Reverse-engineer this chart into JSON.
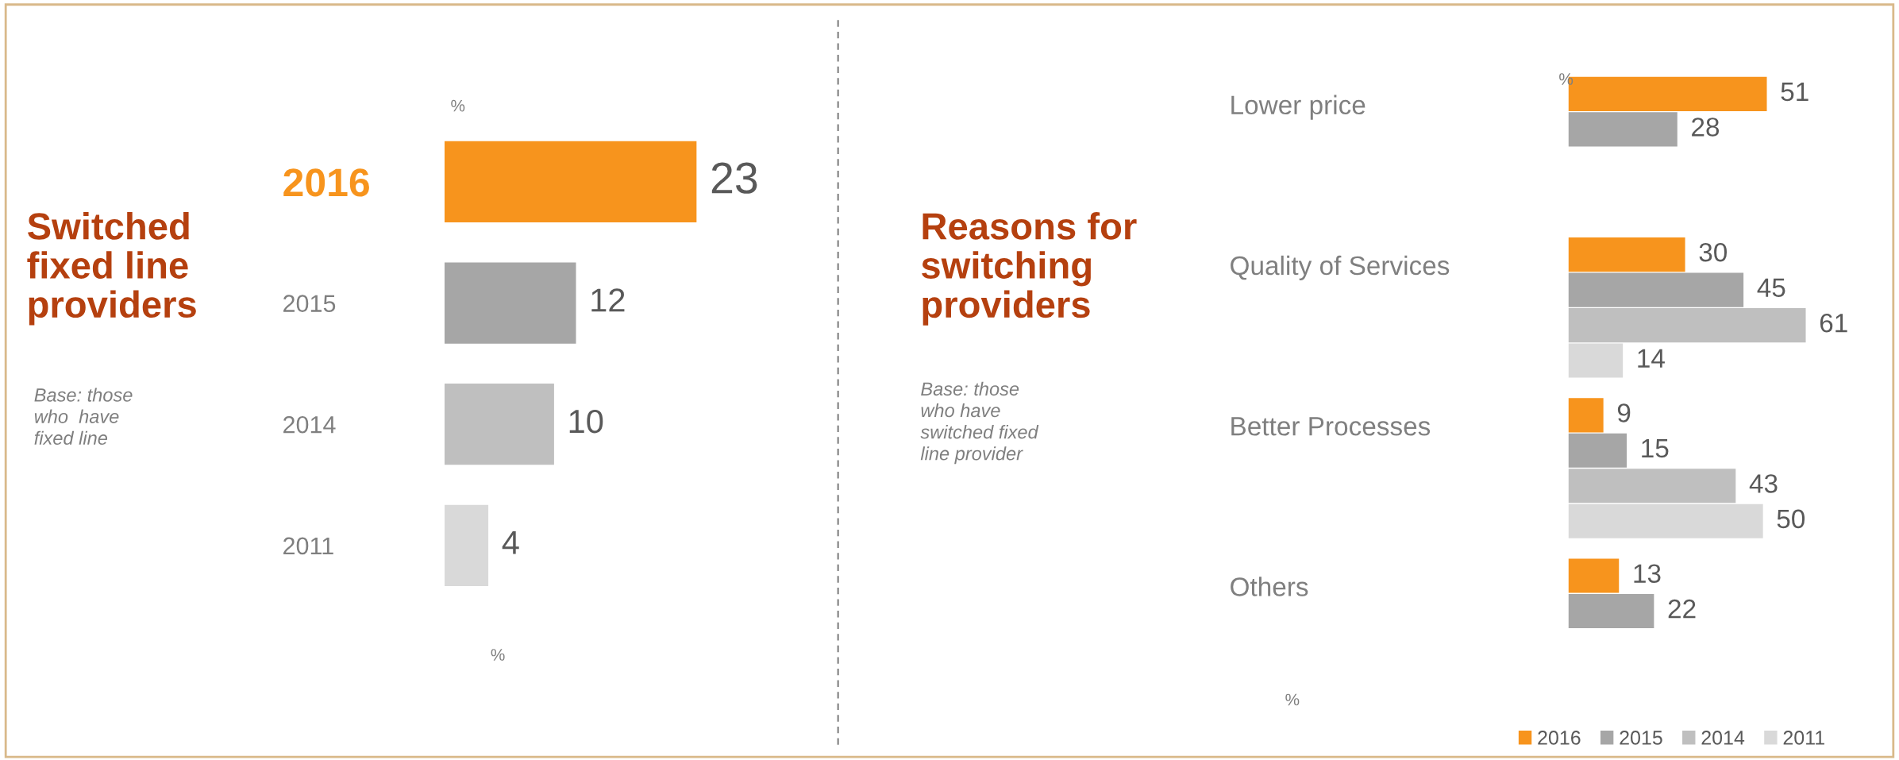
{
  "chart_data": [
    {
      "type": "bar",
      "orientation": "horizontal",
      "title": "Switched\nfixed line\nproviders",
      "categories": [
        "2016",
        "2015",
        "2014",
        "2011"
      ],
      "values": [
        23,
        12,
        10,
        4
      ],
      "colors": [
        "#f7941d",
        "#a6a6a6",
        "#bfbfbf",
        "#d9d9d9"
      ],
      "annotations": [
        "%",
        "%",
        "Base: those\nwho  have\nfixed line"
      ],
      "data_labels": true,
      "grid": false
    },
    {
      "type": "bar",
      "orientation": "horizontal",
      "title": "Reasons for\nswitching\nproviders",
      "categories": [
        "Lower price",
        "Quality of Services",
        "Better Processes",
        "Others"
      ],
      "series": [
        {
          "name": "2016",
          "color": "#f7941d",
          "values": [
            51,
            30,
            9,
            13
          ]
        },
        {
          "name": "2015",
          "color": "#a6a6a6",
          "values": [
            28,
            45,
            15,
            22
          ]
        },
        {
          "name": "2014",
          "color": "#bfbfbf",
          "values": [
            null,
            61,
            43,
            null
          ]
        },
        {
          "name": "2011",
          "color": "#d9d9d9",
          "values": [
            null,
            14,
            50,
            null
          ]
        }
      ],
      "annotations": [
        "%",
        "%",
        "Base: those\nwho have\nswitched fixed\nline provider"
      ],
      "data_labels": true,
      "grid": false,
      "legend": "bottom"
    }
  ]
}
